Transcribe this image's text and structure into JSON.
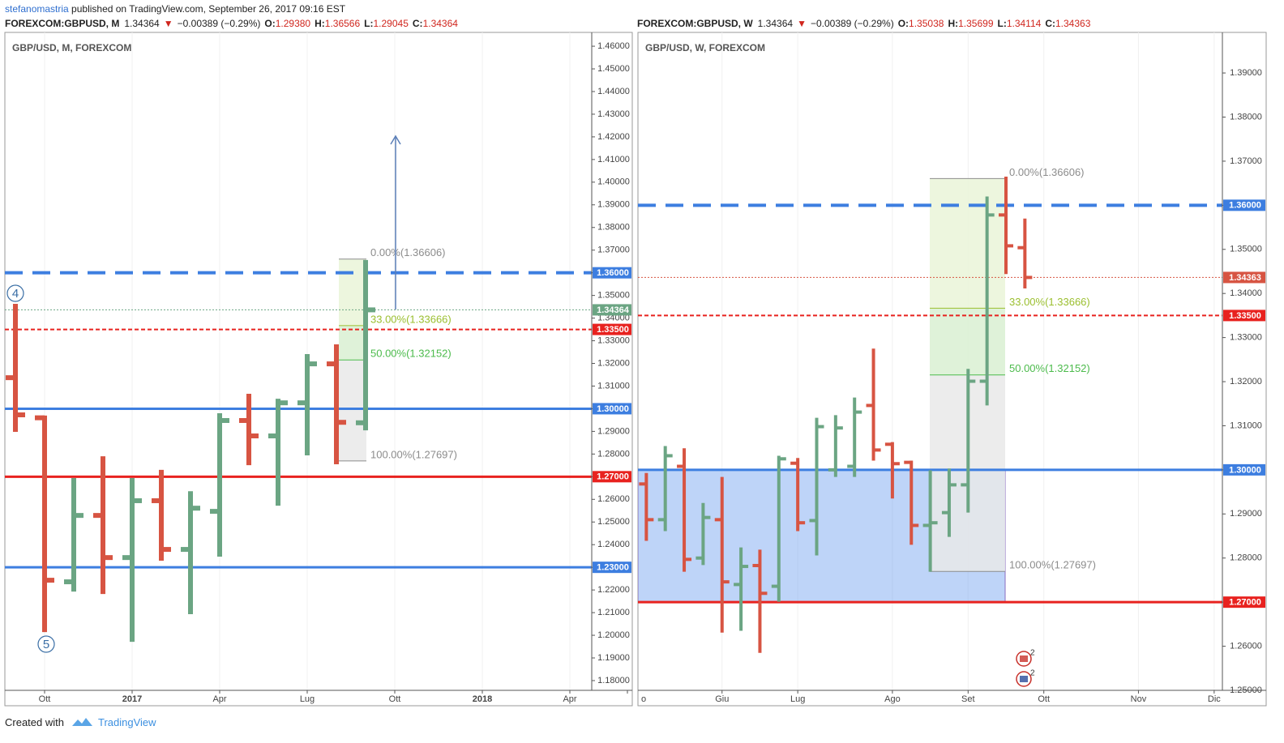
{
  "header": {
    "user": "stefanomastria",
    "published": "published on TradingView.com, September 26, 2017 09:16 EST"
  },
  "footer": {
    "created": "Created with",
    "brand": "TradingView"
  },
  "chart_data": [
    {
      "type": "ohlc",
      "legend_title": "GBP/USD, M, FOREXCOM",
      "quote": {
        "symbol": "FOREXCOM:GBPUSD, M",
        "last": "1.34364",
        "arrow": "▼",
        "change": "−0.00389 (−0.29%)",
        "ohlc": [
          {
            "label": "O:",
            "value": "1.29380"
          },
          {
            "label": "H:",
            "value": "1.36566"
          },
          {
            "label": "L:",
            "value": "1.29045"
          },
          {
            "label": "C:",
            "value": "1.34364"
          }
        ]
      },
      "up_color": "#6ba583",
      "down_color": "#d75442",
      "categories": [
        null,
        "Ott",
        null,
        null,
        "2017",
        null,
        null,
        "Apr",
        null,
        null,
        "Lug",
        null,
        null,
        "Ott",
        null,
        null,
        "2018",
        null,
        null,
        "Apr"
      ],
      "open": [
        1.3137,
        1.296,
        1.2236,
        1.2529,
        1.2343,
        1.2594,
        1.2379,
        1.2547,
        1.2948,
        1.288,
        1.3026,
        1.3198,
        1.2938,
        null,
        null,
        null,
        null,
        null,
        null,
        null
      ],
      "high": [
        1.3463,
        1.297,
        1.2694,
        1.279,
        1.2694,
        1.273,
        1.2636,
        1.298,
        1.3066,
        1.3044,
        1.3241,
        1.3284,
        1.36566,
        null,
        null,
        null,
        null,
        null,
        null,
        null
      ],
      "low": [
        1.2898,
        1.2014,
        1.2193,
        1.2182,
        1.1971,
        1.2329,
        1.2093,
        1.2347,
        1.2751,
        1.2572,
        1.2794,
        1.2755,
        1.29045,
        null,
        null,
        null,
        null,
        null,
        null,
        null
      ],
      "close": [
        1.2973,
        1.2243,
        1.2529,
        1.2343,
        1.2594,
        1.2379,
        1.2561,
        1.2948,
        1.288,
        1.3026,
        1.3198,
        1.294,
        1.34364,
        null,
        null,
        null,
        null,
        null,
        null,
        null
      ],
      "ylim": [
        1.1757,
        1.4661
      ],
      "yticks": [
        {
          "value": 1.18,
          "label": "1.18000"
        },
        {
          "value": 1.19,
          "label": "1.19000"
        },
        {
          "value": 1.2,
          "label": "1.20000"
        },
        {
          "value": 1.21,
          "label": "1.21000"
        },
        {
          "value": 1.22,
          "label": "1.22000"
        },
        {
          "value": 1.23,
          "label": "1.23000"
        },
        {
          "value": 1.24,
          "label": "1.24000"
        },
        {
          "value": 1.25,
          "label": "1.25000"
        },
        {
          "value": 1.26,
          "label": "1.26000"
        },
        {
          "value": 1.27,
          "label": "1.27000"
        },
        {
          "value": 1.28,
          "label": "1.28000"
        },
        {
          "value": 1.29,
          "label": "1.29000"
        },
        {
          "value": 1.3,
          "label": "1.30000"
        },
        {
          "value": 1.31,
          "label": "1.31000"
        },
        {
          "value": 1.32,
          "label": "1.32000"
        },
        {
          "value": 1.33,
          "label": "1.33000"
        },
        {
          "value": 1.34,
          "label": "1.34000"
        },
        {
          "value": 1.35,
          "label": "1.35000"
        },
        {
          "value": 1.36,
          "label": "1.36000"
        },
        {
          "value": 1.37,
          "label": "1.37000"
        },
        {
          "value": 1.38,
          "label": "1.38000"
        },
        {
          "value": 1.39,
          "label": "1.39000"
        },
        {
          "value": 1.4,
          "label": "1.40000"
        },
        {
          "value": 1.41,
          "label": "1.41000"
        },
        {
          "value": 1.42,
          "label": "1.42000"
        },
        {
          "value": 1.43,
          "label": "1.43000"
        },
        {
          "value": 1.44,
          "label": "1.44000"
        },
        {
          "value": 1.45,
          "label": "1.45000"
        },
        {
          "value": 1.46,
          "label": "1.46000"
        }
      ],
      "levels": [
        {
          "value": 1.36,
          "label": "1.36000",
          "color": "#3d7ee0",
          "style": "dashed"
        },
        {
          "value": 1.335,
          "label": "1.33500",
          "color": "#e8221f",
          "style": "dash-small"
        },
        {
          "value": 1.34364,
          "label": "1.34364",
          "color": "#6ba583",
          "style": "dotted"
        },
        {
          "value": 1.3,
          "label": "1.30000",
          "color": "#3d7ee0",
          "style": "solid"
        },
        {
          "value": 1.27,
          "label": "1.27000",
          "color": "#e8221f",
          "style": "solid"
        },
        {
          "value": 1.23,
          "label": "1.23000",
          "color": "#3d7ee0",
          "style": "solid"
        }
      ],
      "fib": {
        "fills": [
          "#eaf5d8",
          "#d9f0d2",
          "#e9e9e9"
        ],
        "levels": [
          {
            "value": 1.36606,
            "label": "0.00%(1.36606)",
            "color": "#8c8c8c"
          },
          {
            "value": 1.33666,
            "label": "33.00%(1.33666)",
            "color": "#9bbf2f"
          },
          {
            "value": 1.32152,
            "label": "50.00%(1.32152)",
            "color": "#4cbb4c"
          },
          {
            "value": 1.27697,
            "label": "100.00%(1.27697)",
            "color": "#8c8c8c"
          }
        ]
      },
      "annotations": [
        "4",
        "5"
      ]
    },
    {
      "type": "ohlc",
      "legend_title": "GBP/USD, W, FOREXCOM",
      "quote": {
        "symbol": "FOREXCOM:GBPUSD, W",
        "last": "1.34364",
        "arrow": "▼",
        "change": "−0.00389 (−0.29%)",
        "ohlc": [
          {
            "label": "O:",
            "value": "1.35038"
          },
          {
            "label": "H:",
            "value": "1.35699"
          },
          {
            "label": "L:",
            "value": "1.34114"
          },
          {
            "label": "C:",
            "value": "1.34363"
          }
        ]
      },
      "up_color": "#6ba583",
      "down_color": "#d75442",
      "categories": [
        "o",
        null,
        null,
        null,
        null,
        "Giu",
        null,
        null,
        null,
        "Lug",
        null,
        null,
        null,
        null,
        "Ago",
        null,
        null,
        null,
        "Set",
        null,
        null,
        null,
        "Ott",
        null,
        null,
        null,
        null,
        "Nov",
        null,
        null,
        null,
        "Dic"
      ],
      "open": [
        null,
        1.2968,
        1.2887,
        1.3008,
        1.28,
        1.2887,
        1.274,
        1.2783,
        1.2736,
        1.3015,
        1.2885,
        1.3,
        1.3008,
        1.3146,
        1.3058,
        1.3017,
        1.2874,
        1.2903,
        1.2966,
        1.3201,
        1.3578,
        1.35038,
        null,
        null,
        null,
        null,
        null,
        null,
        null,
        null,
        null,
        null
      ],
      "high": [
        null,
        1.2993,
        1.3054,
        1.3049,
        1.2925,
        1.2984,
        1.2824,
        1.2819,
        1.3032,
        1.3027,
        1.3118,
        1.3124,
        1.3164,
        1.3275,
        1.3063,
        1.3021,
        1.2999,
        1.3003,
        1.3229,
        1.362,
        1.3665,
        1.35699,
        null,
        null,
        null,
        null,
        null,
        null,
        null,
        null,
        null,
        null
      ],
      "low": [
        null,
        1.2839,
        1.2861,
        1.2769,
        1.2784,
        1.2631,
        1.2635,
        1.2585,
        1.2701,
        1.2861,
        1.2806,
        1.2984,
        1.2984,
        1.3021,
        1.2935,
        1.283,
        1.2769,
        1.2848,
        1.2903,
        1.3146,
        1.3444,
        1.34114,
        null,
        null,
        null,
        null,
        null,
        null,
        null,
        null,
        null,
        null
      ],
      "close": [
        null,
        1.2887,
        1.3032,
        1.2797,
        1.2892,
        1.2746,
        1.2781,
        1.272,
        1.3025,
        1.288,
        1.3098,
        1.3095,
        1.3131,
        1.3045,
        1.3014,
        1.2874,
        1.288,
        1.2966,
        1.3201,
        1.3578,
        1.3508,
        1.34363,
        null,
        null,
        null,
        null,
        null,
        null,
        null,
        null,
        null,
        null
      ],
      "ylim": [
        1.25,
        1.3992
      ],
      "yticks": [
        {
          "value": 1.25,
          "label": "1.25000"
        },
        {
          "value": 1.26,
          "label": "1.26000"
        },
        {
          "value": 1.27,
          "label": "1.27000"
        },
        {
          "value": 1.28,
          "label": "1.28000"
        },
        {
          "value": 1.29,
          "label": "1.29000"
        },
        {
          "value": 1.3,
          "label": "1.30000"
        },
        {
          "value": 1.31,
          "label": "1.31000"
        },
        {
          "value": 1.32,
          "label": "1.32000"
        },
        {
          "value": 1.33,
          "label": "1.33000"
        },
        {
          "value": 1.34,
          "label": "1.34000"
        },
        {
          "value": 1.35,
          "label": "1.35000"
        },
        {
          "value": 1.36,
          "label": "1.36000"
        },
        {
          "value": 1.37,
          "label": "1.37000"
        },
        {
          "value": 1.38,
          "label": "1.38000"
        },
        {
          "value": 1.39,
          "label": "1.39000"
        }
      ],
      "levels": [
        {
          "value": 1.36,
          "label": "1.36000",
          "color": "#3d7ee0",
          "style": "dashed"
        },
        {
          "value": 1.34363,
          "label": "1.34363",
          "color": "#d75442",
          "style": "dotted"
        },
        {
          "value": 1.335,
          "label": "1.33500",
          "color": "#e8221f",
          "style": "dash-small"
        },
        {
          "value": 1.3,
          "label": "1.30000",
          "color": "#3d7ee0",
          "style": "solid"
        },
        {
          "value": 1.27,
          "label": "1.27000",
          "color": "#e8221f",
          "style": "solid"
        }
      ],
      "fib": {
        "fills": [
          "#eaf5d8",
          "#d9f0d2",
          "#e9e9e9"
        ],
        "levels": [
          {
            "value": 1.36606,
            "label": "0.00%(1.36606)",
            "color": "#8c8c8c"
          },
          {
            "value": 1.33666,
            "label": "33.00%(1.33666)",
            "color": "#9bbf2f"
          },
          {
            "value": 1.32152,
            "label": "50.00%(1.32152)",
            "color": "#4cbb4c"
          },
          {
            "value": 1.27697,
            "label": "100.00%(1.27697)",
            "color": "#8c8c8c"
          }
        ]
      },
      "zone_color": "#6f9ff0",
      "events": [
        "2",
        "2"
      ]
    }
  ]
}
